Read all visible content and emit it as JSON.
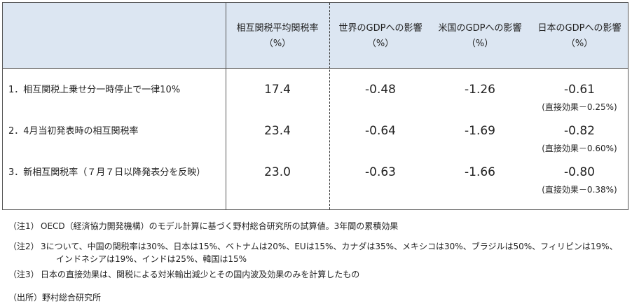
{
  "table": {
    "header": [
      {
        "line1": "相互関税平均関税率",
        "line2": "（%）"
      },
      {
        "line1": "世界のGDPへの影響",
        "line2": "（%）"
      },
      {
        "line1": "米国のGDPへの影響",
        "line2": "（%）"
      },
      {
        "line1": "日本のGDPへの影響",
        "line2": "（%）"
      }
    ],
    "rows": [
      {
        "label": "1．相互関税上乗せ分一時停止で一律10%",
        "values": [
          "17.4",
          "-0.48",
          "-1.26",
          "-0.61"
        ],
        "direct": "(直接効果－0.25%)"
      },
      {
        "label": "2．4月当初発表時の相互関税率",
        "values": [
          "23.4",
          "-0.64",
          "-1.69",
          "-0.82"
        ],
        "direct": "(直接効果－0.60%)"
      },
      {
        "label": "3．新相互関税率（７月７日以降発表分を反映）",
        "values": [
          "23.0",
          "-0.63",
          "-1.66",
          "-0.80"
        ],
        "direct": "(直接効果－0.38%)"
      }
    ]
  },
  "notes": [
    {
      "label": "（注1）",
      "lines": [
        "OECD（経済協力開発機構）のモデル計算に基づく野村総合研究所の試算値。3年間の累積効果"
      ]
    },
    {
      "label": "（注2）",
      "lines": [
        "3について、中国の関税率は30%、日本は15%、ベトナムは20%、EUは15%、カナダは35%、メキシコは30%、ブラジルは50%、フィリピンは19%、",
        "インドネシアは19%、インドは25%、韓国は15%"
      ]
    },
    {
      "label": "（注3）",
      "lines": [
        "日本の直接効果は、関税による対米輸出減少とその国内波及効果のみを計算したもの"
      ]
    }
  ],
  "source": "（出所）野村総合研究所"
}
